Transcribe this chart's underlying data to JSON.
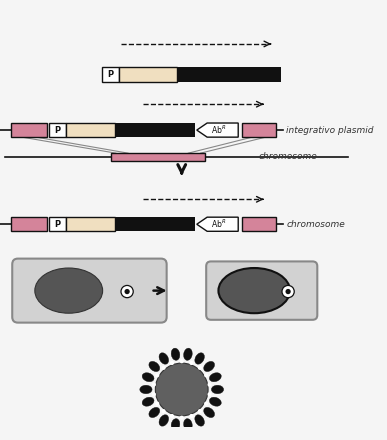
{
  "bg_color": "#f5f5f5",
  "pink_color": "#d4849a",
  "cream_color": "#f0dfc0",
  "black_color": "#111111",
  "white_color": "#ffffff",
  "gray_color": "#888888",
  "arrow_color": "#444444",
  "line_color": "#555555",
  "text_color": "#333333",
  "label_integrative": "integrativo plasmid",
  "label_chromosome1": "chromosome",
  "label_chromosome2": "chromosome"
}
